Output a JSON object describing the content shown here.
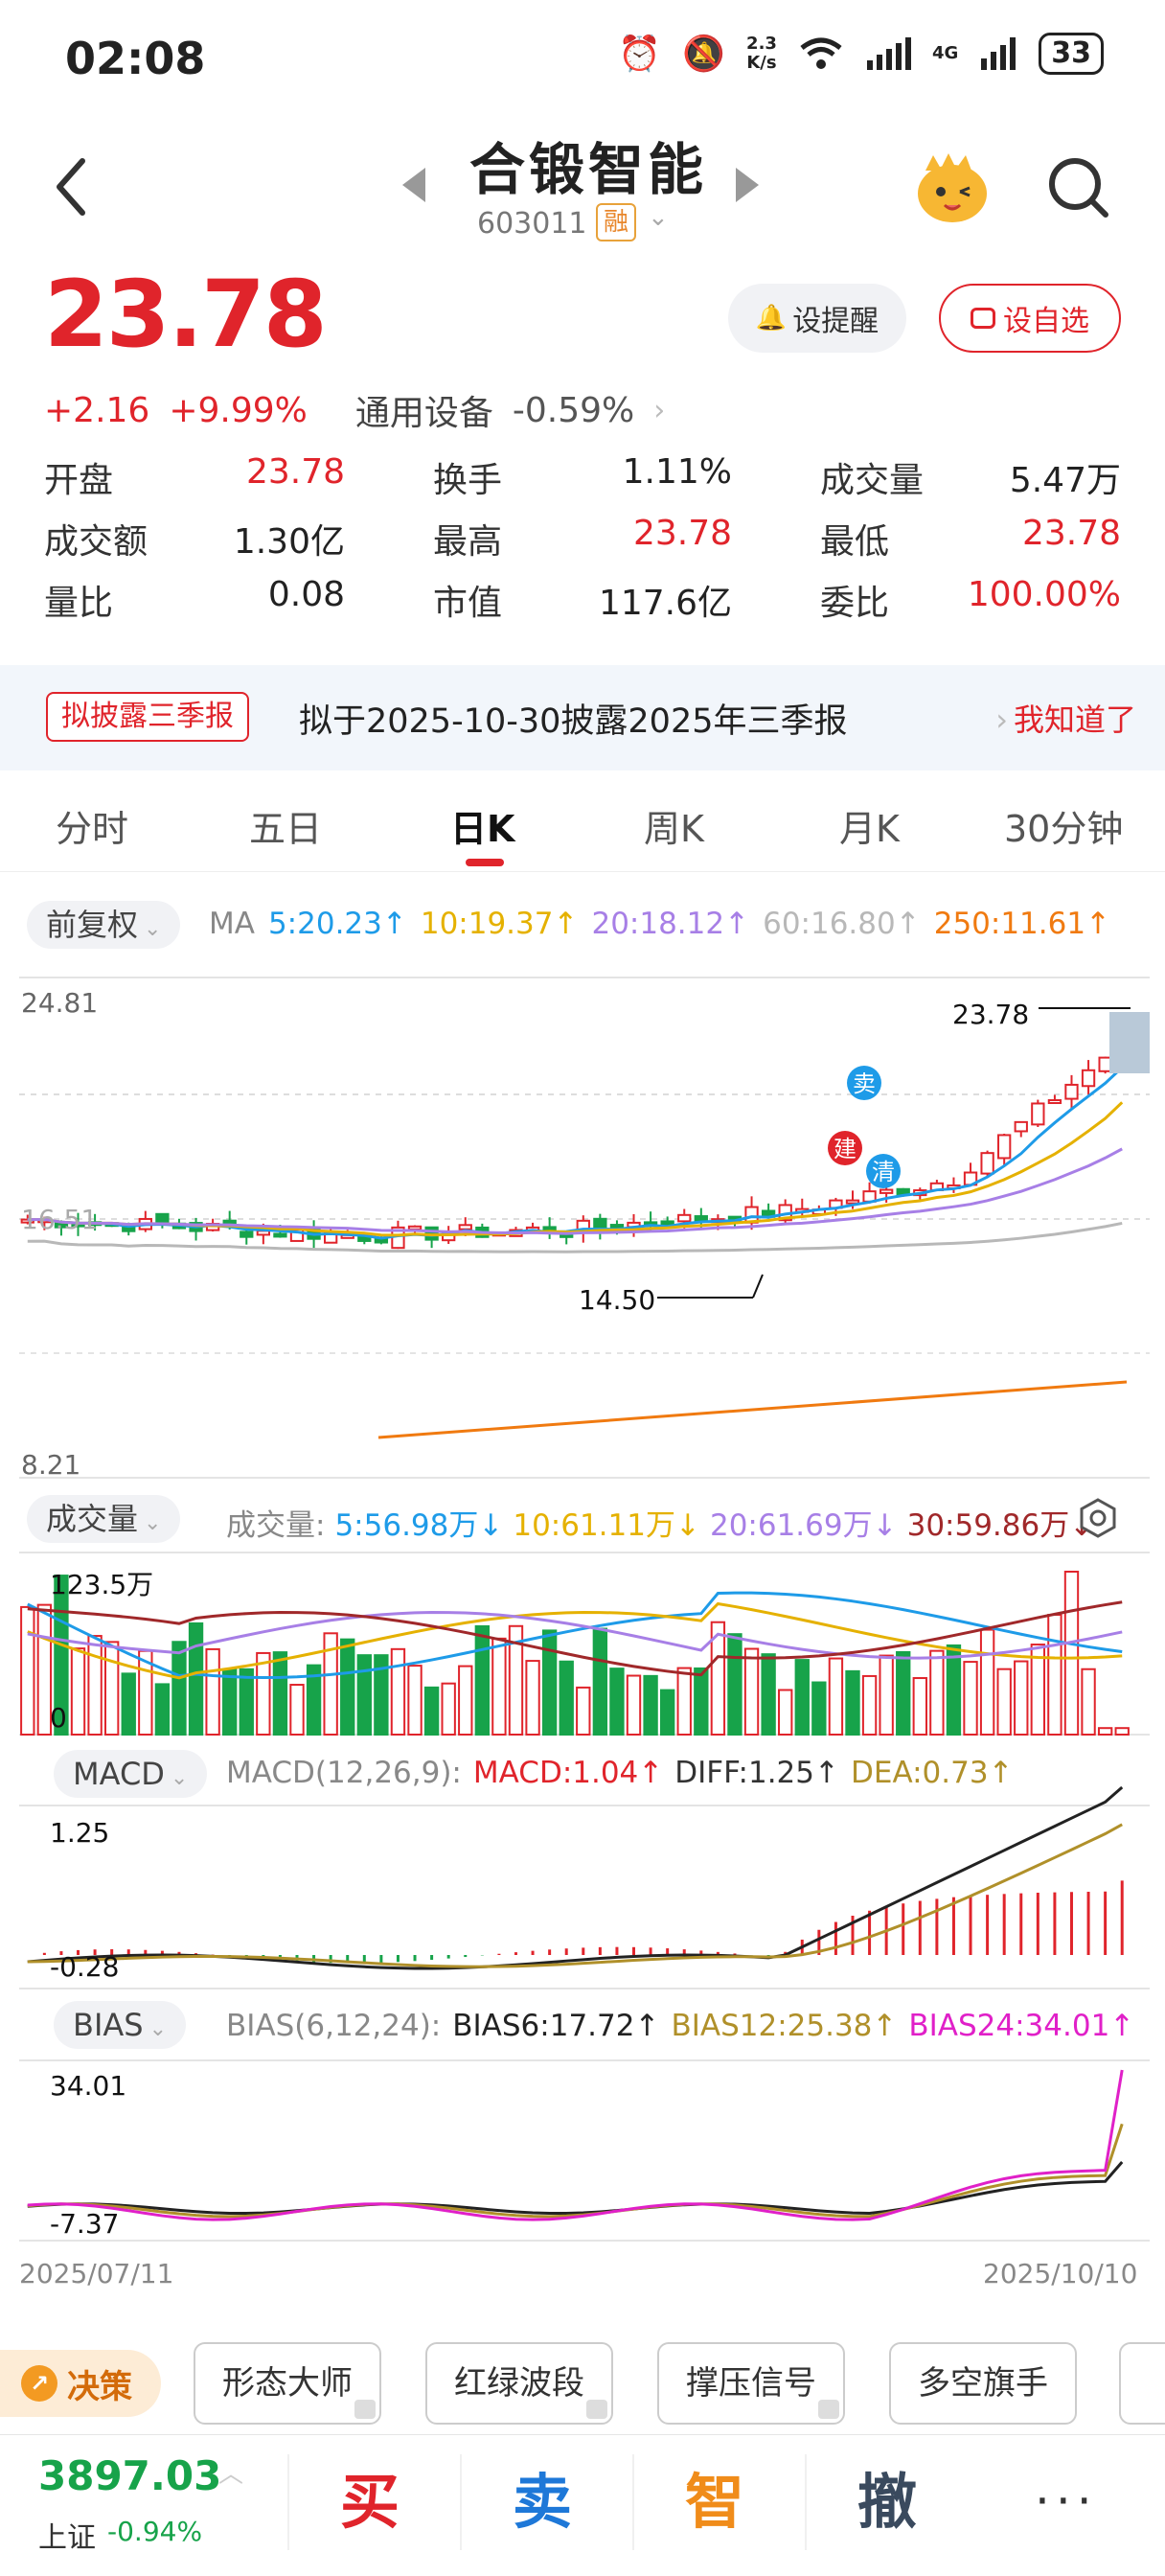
{
  "status_bar": {
    "time": "02:08",
    "net_speed_value": "2.3",
    "net_speed_unit": "K/s",
    "network": "4G",
    "battery": "33"
  },
  "header": {
    "name": "合锻智能",
    "code": "603011",
    "margin_tag": "融"
  },
  "quote": {
    "price": "23.78",
    "change": "+2.16",
    "change_pct": "+9.99%",
    "industry": "通用设备",
    "industry_change": "-0.59%",
    "remind_button": "设提醒",
    "fav_button": "设自选",
    "stats": [
      {
        "label": "开盘",
        "value": "23.78",
        "color": "red"
      },
      {
        "label": "换手",
        "value": "1.11%",
        "color": "black"
      },
      {
        "label": "成交量",
        "value": "5.47万",
        "color": "black"
      },
      {
        "label": "成交额",
        "value": "1.30亿",
        "color": "black"
      },
      {
        "label": "最高",
        "value": "23.78",
        "color": "red"
      },
      {
        "label": "最低",
        "value": "23.78",
        "color": "red"
      },
      {
        "label": "量比",
        "value": "0.08",
        "color": "black"
      },
      {
        "label": "市值",
        "value": "117.6亿",
        "color": "black"
      },
      {
        "label": "委比",
        "value": "100.00%",
        "color": "red"
      }
    ]
  },
  "notice": {
    "tag": "拟披露三季报",
    "text": "拟于2025-10-30披露2025年三季报",
    "action": "我知道了"
  },
  "tabs": [
    {
      "label": "分时",
      "active": false
    },
    {
      "label": "五日",
      "active": false
    },
    {
      "label": "日K",
      "active": true
    },
    {
      "label": "周K",
      "active": false
    },
    {
      "label": "月K",
      "active": false
    },
    {
      "label": "30分钟",
      "active": false
    }
  ],
  "kline": {
    "adjust": "前复权",
    "ma_label": "MA",
    "ma": [
      {
        "text": "5:20.23↑",
        "color": "#1e9be8"
      },
      {
        "text": "10:19.37↑",
        "color": "#e5b100"
      },
      {
        "text": "20:18.12↑",
        "color": "#a77fe6"
      },
      {
        "text": "60:16.80↑",
        "color": "#b8b8b8"
      },
      {
        "text": "250:11.61↑",
        "color": "#f07a10"
      }
    ],
    "y_max": "24.81",
    "y_mid": "16.51",
    "y_min": "8.21",
    "high_label": "23.78",
    "low_label": "14.50",
    "markers": {
      "sell": "卖",
      "build": "建",
      "clear": "清"
    }
  },
  "volume": {
    "title": "成交量",
    "prefix": "成交量:",
    "ma": [
      {
        "text": "5:56.98万↓",
        "color": "#1e9be8"
      },
      {
        "text": "10:61.11万↓",
        "color": "#e5b100"
      },
      {
        "text": "20:61.69万↓",
        "color": "#a77fe6"
      },
      {
        "text": "30:59.86万↓",
        "color": "#a0282a"
      }
    ],
    "y_max": "123.5万",
    "y_min": "0"
  },
  "macd": {
    "title": "MACD",
    "params": "MACD(12,26,9):",
    "values": [
      {
        "text": "MACD:1.04↑",
        "color": "#e0242b"
      },
      {
        "text": "DIFF:1.25↑",
        "color": "#333333"
      },
      {
        "text": "DEA:0.73↑",
        "color": "#b0902a"
      }
    ],
    "y_max": "1.25",
    "y_min": "-0.28"
  },
  "bias": {
    "title": "BIAS",
    "params": "BIAS(6,12,24):",
    "values": [
      {
        "text": "BIAS6:17.72↑",
        "color": "#222222"
      },
      {
        "text": "BIAS12:25.38↑",
        "color": "#b0902a"
      },
      {
        "text": "BIAS24:34.01↑",
        "color": "#e020c8"
      }
    ],
    "y_max": "34.01",
    "y_min": "-7.37"
  },
  "dates": {
    "start": "2025/07/11",
    "end": "2025/10/10"
  },
  "strategies": {
    "decision": "决策",
    "items": [
      "形态大师",
      "红绿波段",
      "撑压信号",
      "多空旗手"
    ]
  },
  "footer": {
    "index_value": "3897.03",
    "index_name": "上证",
    "index_change": "-0.94%",
    "buy": "买",
    "sell": "卖",
    "smart": "智",
    "cancel": "撤",
    "more": "···"
  }
}
